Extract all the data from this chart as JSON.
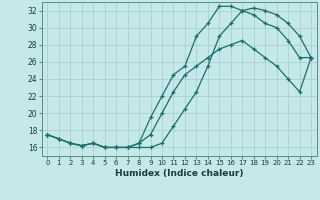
{
  "xlabel": "Humidex (Indice chaleur)",
  "bg_color": "#c5e8e8",
  "grid_color": "#aad0d0",
  "line_color": "#1a6e6e",
  "xlim": [
    -0.5,
    23.5
  ],
  "ylim": [
    15.0,
    33.0
  ],
  "xticks": [
    0,
    1,
    2,
    3,
    4,
    5,
    6,
    7,
    8,
    9,
    10,
    11,
    12,
    13,
    14,
    15,
    16,
    17,
    18,
    19,
    20,
    21,
    22,
    23
  ],
  "yticks": [
    16,
    18,
    20,
    22,
    24,
    26,
    28,
    30,
    32
  ],
  "line1_x": [
    0,
    1,
    2,
    3,
    4,
    5,
    6,
    7,
    8,
    9,
    10,
    11,
    12,
    13,
    14,
    15,
    16,
    17,
    18,
    19,
    20,
    21,
    22,
    23
  ],
  "line1_y": [
    17.5,
    17.0,
    16.5,
    16.2,
    16.5,
    16.0,
    16.0,
    16.0,
    16.0,
    16.0,
    16.5,
    18.5,
    20.5,
    22.5,
    25.5,
    29.0,
    30.5,
    32.0,
    32.3,
    32.0,
    31.5,
    30.5,
    29.0,
    26.5
  ],
  "line2_x": [
    0,
    1,
    2,
    3,
    4,
    5,
    6,
    7,
    8,
    9,
    10,
    11,
    12,
    13,
    14,
    15,
    16,
    17,
    18,
    19,
    20,
    21,
    22,
    23
  ],
  "line2_y": [
    17.5,
    17.0,
    16.5,
    16.2,
    16.5,
    16.0,
    16.0,
    16.0,
    16.5,
    19.5,
    22.0,
    24.5,
    25.5,
    29.0,
    30.5,
    32.5,
    32.5,
    32.0,
    31.5,
    30.5,
    30.0,
    28.5,
    26.5,
    26.5
  ],
  "line3_x": [
    0,
    1,
    2,
    3,
    4,
    5,
    6,
    7,
    8,
    9,
    10,
    11,
    12,
    13,
    14,
    15,
    16,
    17,
    18,
    19,
    20,
    21,
    22,
    23
  ],
  "line3_y": [
    17.5,
    17.0,
    16.5,
    16.2,
    16.5,
    16.0,
    16.0,
    16.0,
    16.5,
    17.5,
    20.0,
    22.5,
    24.5,
    25.5,
    26.5,
    27.5,
    28.0,
    28.5,
    27.5,
    26.5,
    25.5,
    24.0,
    22.5,
    26.5
  ]
}
